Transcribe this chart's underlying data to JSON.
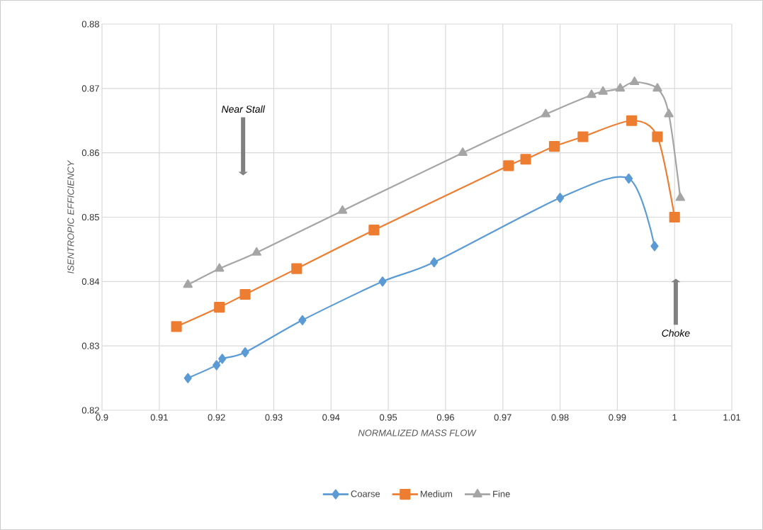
{
  "chart_data": {
    "type": "line",
    "xlabel": "NORMALIZED MASS FLOW",
    "ylabel": "ISENTROPIC EFFICIENCY",
    "xlim": [
      0.9,
      1.01
    ],
    "xticks": [
      0.9,
      0.91,
      0.92,
      0.93,
      0.94,
      0.95,
      0.96,
      0.97,
      0.98,
      0.99,
      1,
      1.01
    ],
    "ylim": [
      0.82,
      0.88
    ],
    "yticks": [
      0.82,
      0.83,
      0.84,
      0.85,
      0.86,
      0.87,
      0.88
    ],
    "grid": true,
    "legend": "bottom",
    "line_style": "solid",
    "series": [
      {
        "name": "Coarse",
        "color": "#5b9bd5",
        "marker": "diamond",
        "x": [
          0.915,
          0.92,
          0.921,
          0.925,
          0.935,
          0.949,
          0.958,
          0.98,
          0.992,
          0.9965
        ],
        "values": [
          0.825,
          0.827,
          0.828,
          0.829,
          0.834,
          0.84,
          0.843,
          0.853,
          0.856,
          0.8455
        ]
      },
      {
        "name": "Medium",
        "color": "#ed7d31",
        "marker": "square",
        "x": [
          0.913,
          0.9205,
          0.925,
          0.934,
          0.9475,
          0.971,
          0.974,
          0.979,
          0.984,
          0.9925,
          0.997,
          1.0
        ],
        "values": [
          0.833,
          0.836,
          0.838,
          0.842,
          0.848,
          0.858,
          0.859,
          0.861,
          0.8625,
          0.865,
          0.8625,
          0.85
        ]
      },
      {
        "name": "Fine",
        "color": "#a5a5a5",
        "marker": "triangle",
        "x": [
          0.915,
          0.9205,
          0.927,
          0.942,
          0.963,
          0.9775,
          0.9855,
          0.9875,
          0.9905,
          0.993,
          0.997,
          0.999,
          1.001
        ],
        "values": [
          0.8395,
          0.842,
          0.8445,
          0.851,
          0.86,
          0.866,
          0.869,
          0.8695,
          0.87,
          0.871,
          0.87,
          0.866,
          0.853
        ]
      }
    ],
    "annotations": [
      "Near Stall",
      "Choke"
    ]
  }
}
